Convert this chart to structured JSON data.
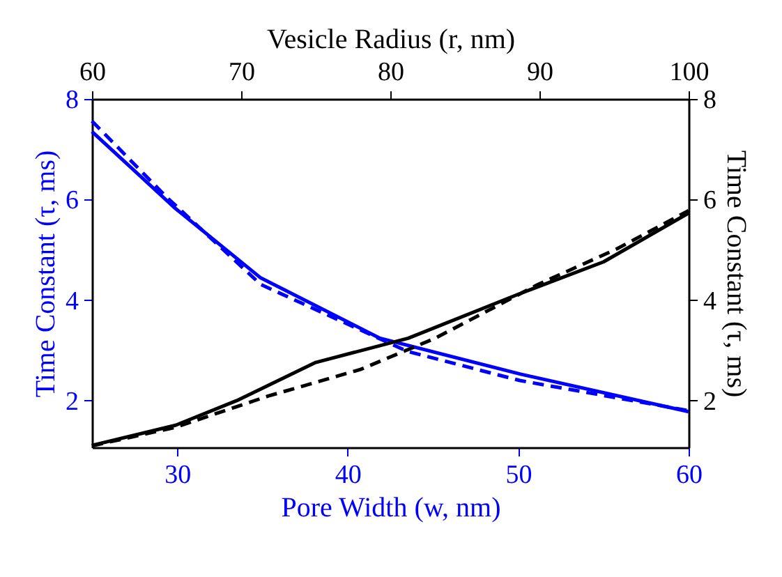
{
  "chart_data": {
    "type": "line",
    "xlabel": "Pore Width (w, nm)",
    "x2label": "Vesicle Radius (r, nm)",
    "ylabel": "Time Constant (τ, ms)",
    "y2label": "Time Constant (τ, ms)",
    "xlim": [
      25,
      60
    ],
    "xticks": [
      30,
      40,
      50,
      60
    ],
    "x2lim": [
      60,
      100
    ],
    "x2ticks": [
      60,
      70,
      80,
      90,
      100
    ],
    "ylim": [
      1.07,
      8
    ],
    "yticks": [
      2,
      4,
      6,
      8
    ],
    "y2lim": [
      1.07,
      8
    ],
    "y2ticks": [
      2,
      4,
      6,
      8
    ],
    "grid": false,
    "marker": "none",
    "series": [
      {
        "color": "#0000ff",
        "line_style": "solid",
        "x": [
          25,
          29.9,
          34.9,
          41.9,
          50.1,
          60
        ],
        "values": [
          7.35,
          5.82,
          4.44,
          3.24,
          2.53,
          1.78
        ]
      },
      {
        "color": "#0000ff",
        "line_style": "dashed",
        "x": [
          25,
          29.4,
          34.9,
          43.5,
          50.1,
          60
        ],
        "values": [
          7.56,
          6.04,
          4.31,
          2.98,
          2.4,
          1.8
        ]
      },
      {
        "color": "#000000",
        "line_style": "solid",
        "axis": "x2",
        "x": [
          60,
          65.6,
          69.7,
          75,
          81.2,
          88.7,
          94.3,
          100
        ],
        "values": [
          1.11,
          1.51,
          2.0,
          2.76,
          3.24,
          4.13,
          4.76,
          5.73
        ]
      },
      {
        "color": "#000000",
        "line_style": "dashed",
        "axis": "x2",
        "x": [
          60,
          65.6,
          71.8,
          78,
          83,
          89.9,
          95.2,
          100
        ],
        "values": [
          1.1,
          1.47,
          2.09,
          2.62,
          3.24,
          4.31,
          5.02,
          5.78
        ]
      }
    ]
  }
}
